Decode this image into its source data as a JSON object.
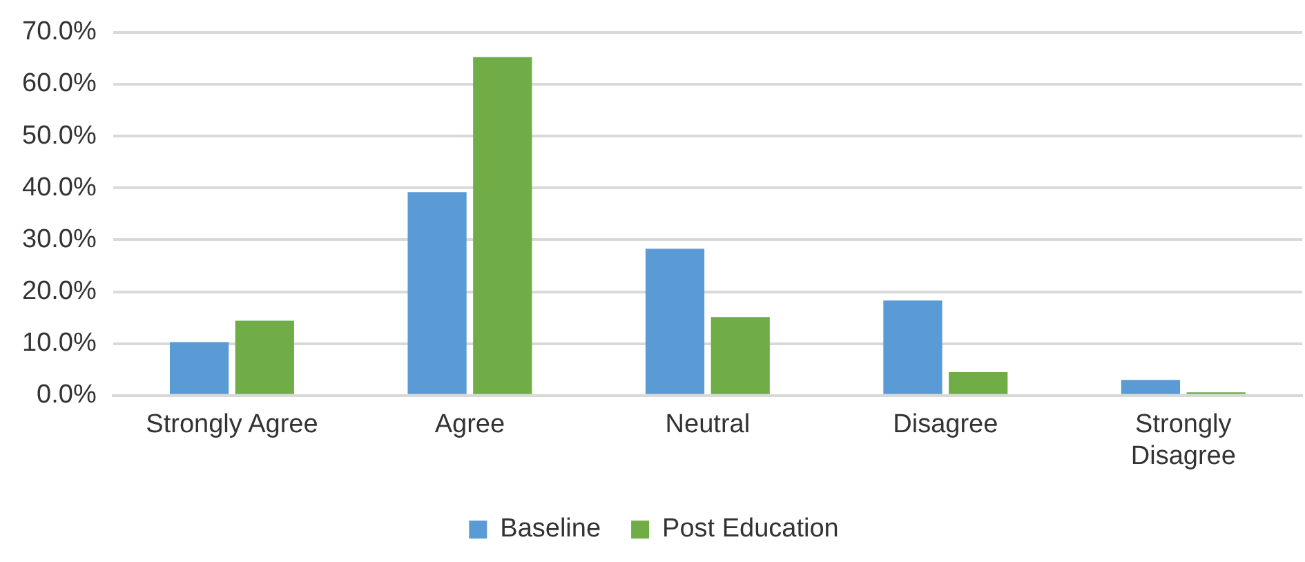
{
  "chart_data": {
    "type": "bar",
    "categories": [
      "Strongly Agree",
      "Agree",
      "Neutral",
      "Disagree",
      "Strongly Disagree"
    ],
    "series": [
      {
        "name": "Baseline",
        "color": "#5b9bd5",
        "values": [
          10.3,
          39.2,
          28.3,
          18.3,
          3.0
        ]
      },
      {
        "name": "Post Education",
        "color": "#70ad47",
        "values": [
          14.4,
          65.2,
          15.1,
          4.5,
          0.6
        ]
      }
    ],
    "ylim": [
      0,
      70
    ],
    "yticks": [
      {
        "value": 0,
        "label": "0.0%"
      },
      {
        "value": 10,
        "label": "10.0%"
      },
      {
        "value": 20,
        "label": "20.0%"
      },
      {
        "value": 30,
        "label": "30.0%"
      },
      {
        "value": 40,
        "label": "40.0%"
      },
      {
        "value": 50,
        "label": "50.0%"
      },
      {
        "value": 60,
        "label": "60.0%"
      },
      {
        "value": 70,
        "label": "70.0%"
      }
    ],
    "grid": "y",
    "legend": "bottom"
  }
}
